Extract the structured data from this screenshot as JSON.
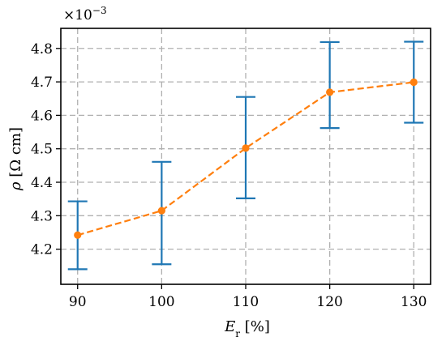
{
  "chart_data": {
    "type": "line",
    "x": [
      90,
      100,
      110,
      120,
      130
    ],
    "series": [
      {
        "values": [
          4.242,
          4.315,
          4.502,
          4.669,
          4.699
        ],
        "errors": [
          [
            4.14,
            4.343
          ],
          [
            4.155,
            4.461
          ],
          [
            4.352,
            4.655
          ],
          [
            4.562,
            4.819
          ],
          [
            4.578,
            4.82
          ]
        ],
        "line_color": "#ff7f0e",
        "errorbar_color": "#1f77b4",
        "linestyle": "dashed",
        "marker": "circle"
      }
    ],
    "xlabel": "Er [%]",
    "ylabel": "ρ [Ω cm]",
    "offset_text": "×10−3",
    "xlim": [
      88,
      132
    ],
    "ylim": [
      4.095,
      4.86
    ],
    "xticks": [
      90,
      100,
      110,
      120,
      130
    ],
    "xtick_labels": [
      "90",
      "100",
      "110",
      "120",
      "130"
    ],
    "yticks": [
      4.2,
      4.3,
      4.4,
      4.5,
      4.6,
      4.7,
      4.8
    ],
    "ytick_labels": [
      "4.2",
      "4.3",
      "4.4",
      "4.5",
      "4.6",
      "4.7",
      "4.8"
    ],
    "grid": true
  }
}
